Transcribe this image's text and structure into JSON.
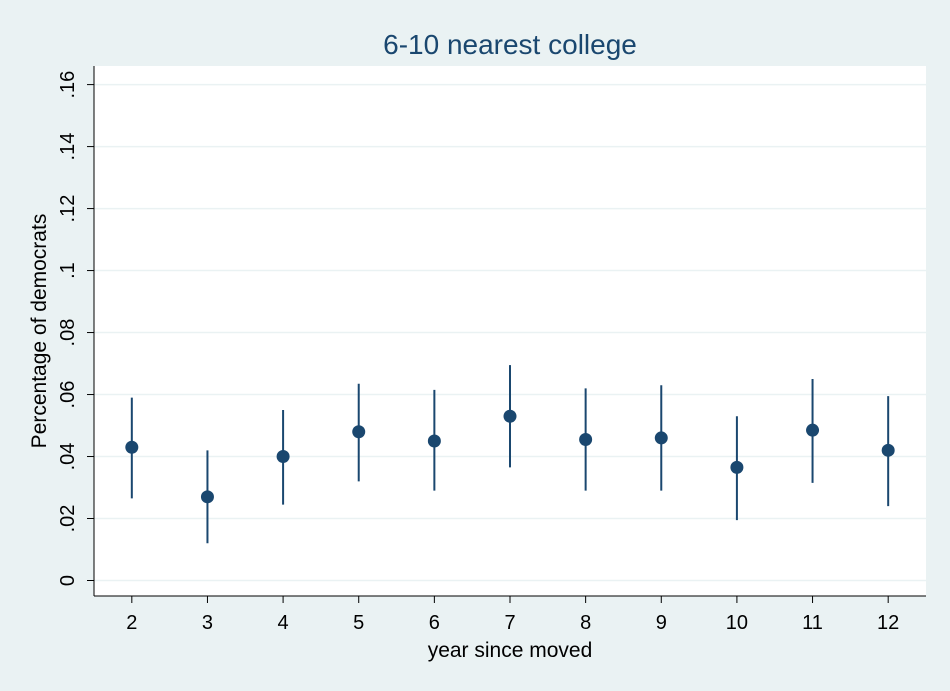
{
  "chart_data": {
    "type": "scatter",
    "title": "6-10 nearest college",
    "xlabel": "year since moved",
    "ylabel": "Percentage of democrats",
    "x": [
      2,
      3,
      4,
      5,
      6,
      7,
      8,
      9,
      10,
      11,
      12
    ],
    "xticks": [
      "2",
      "3",
      "4",
      "5",
      "6",
      "7",
      "8",
      "9",
      "10",
      "11",
      "12"
    ],
    "xlim": [
      1.5,
      12.5
    ],
    "ylim": [
      -0.005,
      0.166
    ],
    "yticks": [
      0,
      0.02,
      0.04,
      0.06,
      0.08,
      0.1,
      0.12,
      0.14,
      0.16
    ],
    "ytick_labels": [
      "0",
      ".02",
      ".04",
      ".06",
      ".08",
      ".1",
      ".12",
      ".14",
      ".16"
    ],
    "series": [
      {
        "values": [
          0.043,
          0.027,
          0.04,
          0.048,
          0.045,
          0.053,
          0.0455,
          0.046,
          0.0365,
          0.0485,
          0.042
        ],
        "ci_low": [
          0.0265,
          0.012,
          0.0245,
          0.032,
          0.029,
          0.0365,
          0.029,
          0.029,
          0.0195,
          0.0315,
          0.024
        ],
        "ci_high": [
          0.059,
          0.042,
          0.055,
          0.0635,
          0.0615,
          0.0695,
          0.062,
          0.063,
          0.053,
          0.065,
          0.0595
        ]
      }
    ],
    "grid": true,
    "legend": "none",
    "colors": {
      "outer_background": "#eaf2f3",
      "plot_background": "#ffffff",
      "marker": "#1a476f",
      "title": "#1a476f",
      "gridline": "#eaf2f3",
      "axis": "#000000"
    }
  }
}
